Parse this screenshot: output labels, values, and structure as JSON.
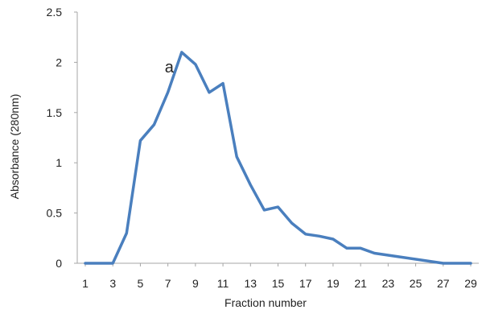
{
  "chart_data": {
    "type": "line",
    "xlabel": "Fraction number",
    "ylabel": "Absorbance  (280nm)",
    "xlim": [
      1,
      29
    ],
    "ylim": [
      0,
      2.5
    ],
    "x_ticks": [
      1,
      3,
      5,
      7,
      9,
      11,
      13,
      15,
      17,
      19,
      21,
      23,
      25,
      27,
      29
    ],
    "y_ticks": [
      0,
      0.5,
      1,
      1.5,
      2,
      2.5
    ],
    "x_tick_labels": [
      "1",
      "3",
      "5",
      "7",
      "9",
      "11",
      "13",
      "15",
      "17",
      "19",
      "21",
      "23",
      "25",
      "27",
      "29"
    ],
    "y_tick_labels": [
      "0",
      "0.5",
      "1",
      "1.5",
      "2",
      "2.5"
    ],
    "grid": false,
    "legend": "none",
    "colors": {
      "line": "#4a7fbe",
      "axis": "#a6a6a6",
      "text": "#222222"
    },
    "series": [
      {
        "x": [
          1,
          2,
          3,
          4,
          5,
          6,
          7,
          8,
          9,
          10,
          11,
          12,
          13,
          14,
          15,
          16,
          17,
          18,
          19,
          20,
          21,
          22,
          23,
          24,
          25,
          26,
          27,
          28,
          29
        ],
        "y": [
          0,
          0,
          0,
          0.3,
          1.22,
          1.38,
          1.7,
          2.1,
          1.98,
          1.7,
          1.79,
          1.06,
          0.78,
          0.53,
          0.56,
          0.4,
          0.29,
          0.27,
          0.24,
          0.15,
          0.15,
          0.1,
          0.08,
          0.06,
          0.04,
          0.02,
          0,
          0,
          0
        ]
      }
    ],
    "annotations": [
      {
        "text": "a",
        "x": 7.1,
        "y": 1.9
      }
    ]
  }
}
